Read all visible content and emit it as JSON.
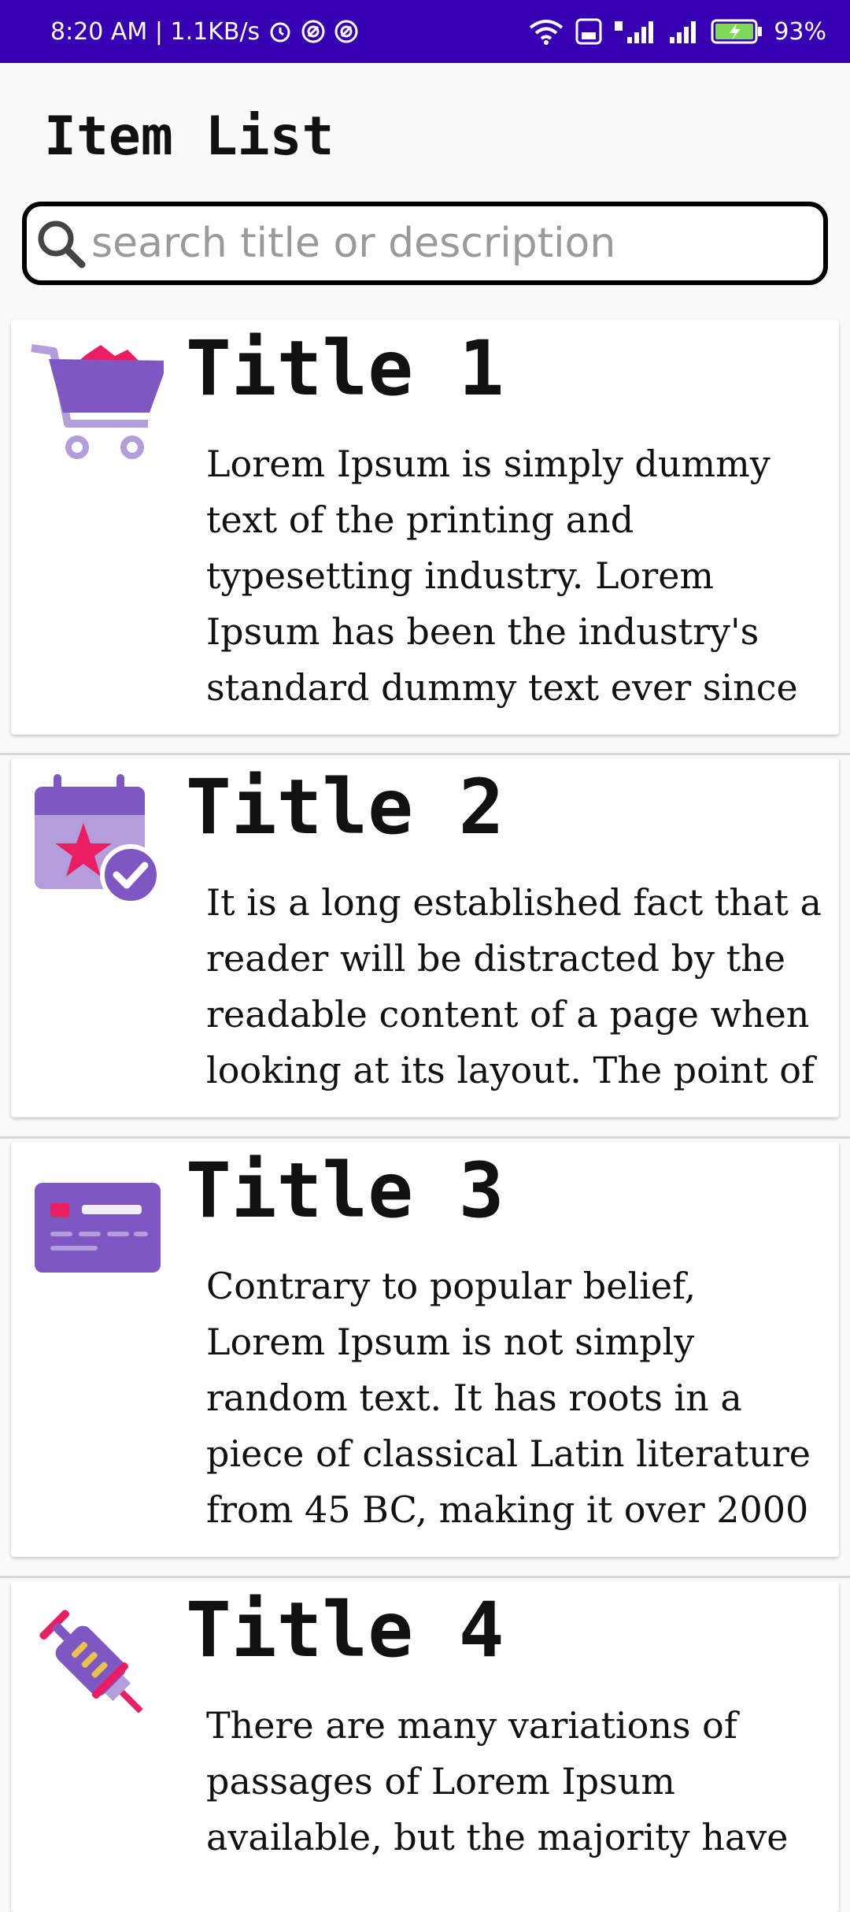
{
  "status_bar": {
    "time": "8:20 AM | 1.1KB/s",
    "battery": "93%"
  },
  "header": {
    "title": "Item List"
  },
  "search": {
    "placeholder": "search title or description",
    "value": ""
  },
  "items": [
    {
      "title": "Title 1",
      "description": "Lorem Ipsum is simply dummy text of the printing and typesetting industry. Lorem Ipsum has been the industry's standard dummy text ever since",
      "icon": "shopping-cart-icon"
    },
    {
      "title": "Title 2",
      "description": "It is a long established fact that a reader will be distracted by the readable content of a page when looking at its layout. The point of",
      "icon": "calendar-star-icon"
    },
    {
      "title": "Title 3",
      "description": "Contrary to popular belief, Lorem Ipsum is not simply random text. It has roots in a piece of classical Latin literature from 45 BC, making it over 2000",
      "icon": "credit-card-icon"
    },
    {
      "title": "Title 4",
      "description": "There are many variations of passages of Lorem Ipsum available, but the majority have",
      "icon": "syringe-icon"
    }
  ],
  "colors": {
    "status_bar": "#3700b3",
    "icon_primary": "#7e57c2",
    "icon_light": "#b39ddb",
    "icon_accent": "#e91e63"
  }
}
